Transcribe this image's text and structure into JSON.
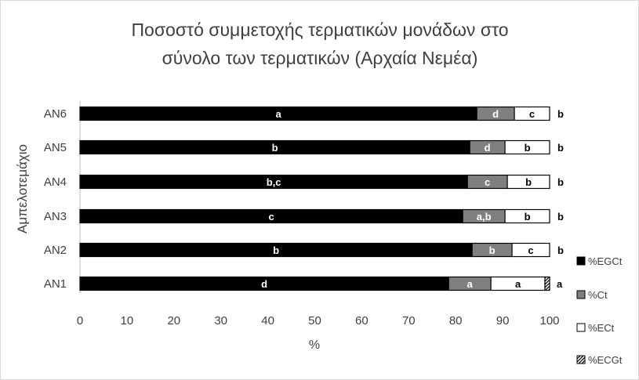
{
  "chart_data": {
    "type": "bar",
    "orientation": "horizontal",
    "stacked": true,
    "title_lines": [
      "Ποσοστό συμμετοχής τερματικών μονάδων στο",
      "σύνολο των τερματικών (Αρχαία Νεμέα)"
    ],
    "xlabel": "%",
    "ylabel": "Αμπελοτεμάχιο",
    "xlim": [
      0,
      100
    ],
    "x_ticks": [
      "0",
      "10",
      "20",
      "30",
      "40",
      "50",
      "60",
      "70",
      "80",
      "90",
      "100"
    ],
    "grid": false,
    "legend_position": "right",
    "categories": [
      "AN1",
      "AN2",
      "AN3",
      "AN4",
      "AN5",
      "AN6"
    ],
    "series": [
      {
        "name": "%EGCt",
        "color": "#000000",
        "values": [
          78.5,
          83.5,
          81.5,
          82.5,
          83.0,
          84.5
        ],
        "labels": [
          "d",
          "b",
          "c",
          "b,c",
          "b",
          "a"
        ]
      },
      {
        "name": "%Ct",
        "color": "#7f7f7f",
        "values": [
          9.0,
          8.5,
          9.0,
          8.5,
          7.5,
          8.0
        ],
        "labels": [
          "a",
          "b",
          "a,b",
          "c",
          "d",
          "d"
        ]
      },
      {
        "name": "%ECt",
        "color": "#ffffff",
        "values": [
          11.5,
          8.0,
          9.5,
          9.0,
          9.5,
          7.5
        ],
        "labels": [
          "a",
          "c",
          "b",
          "b",
          "b",
          "c"
        ]
      },
      {
        "name": "%ECGt",
        "color": "#000000",
        "pattern": "hatched",
        "values": [
          1.0,
          0.0,
          0.0,
          0.0,
          0.0,
          0.0
        ],
        "labels": [
          "a",
          "b",
          "b",
          "b",
          "b",
          "b"
        ]
      }
    ]
  }
}
